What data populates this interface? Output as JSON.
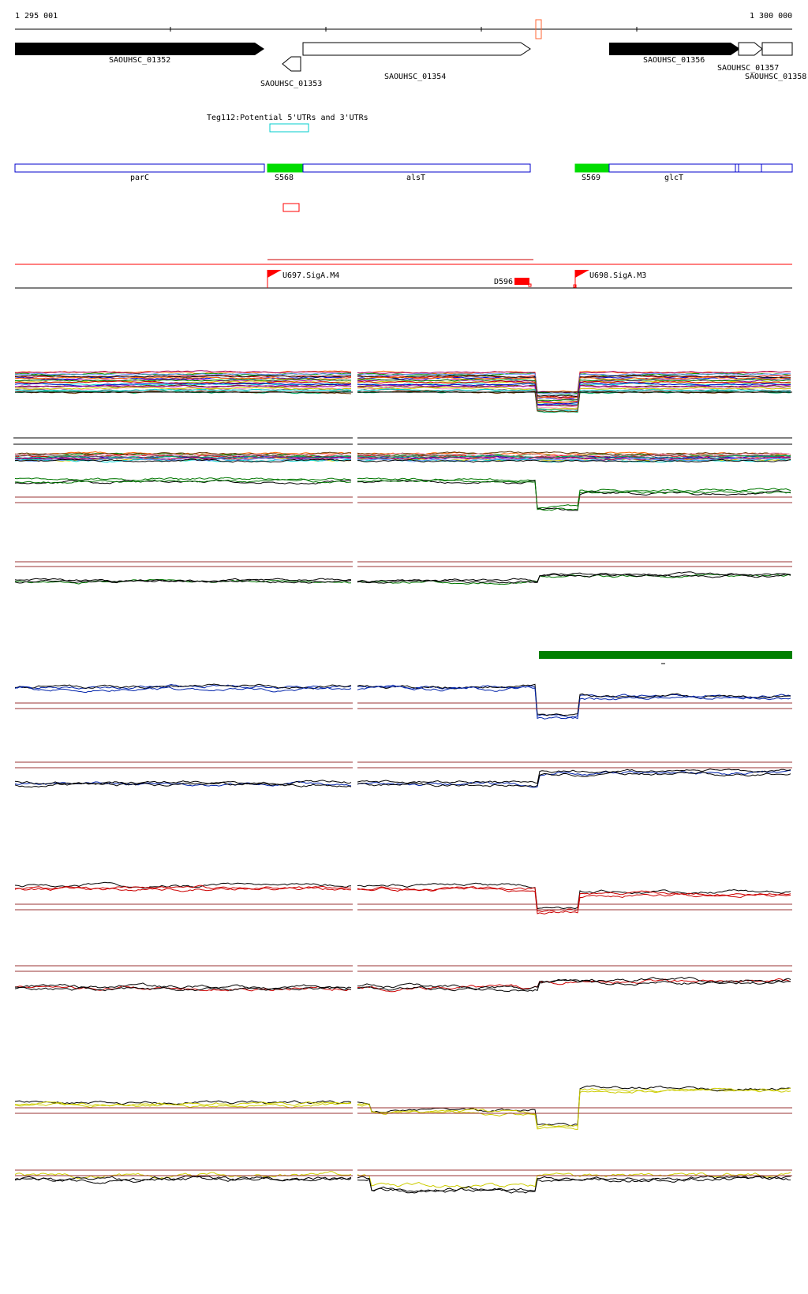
{
  "ruler": {
    "start_label": "1 295 001",
    "end_label": "1 300 000"
  },
  "genes": {
    "g1352": "SAOUHSC_01352",
    "g1353": "SAOUHSC_01353",
    "g1354": "SAOUHSC_01354",
    "g1356": "SAOUHSC_01356",
    "g1357": "SAOUHSC_01357",
    "g1358": "SAOUHSC_01358"
  },
  "utr_annotation": "Teg112:Potential 5'UTRs and 3'UTRs",
  "operons": {
    "parC": "parC",
    "S568": "S568",
    "alsT": "alsT",
    "S569": "S569",
    "glcT": "glcT"
  },
  "promoters": {
    "U697": "U697.SigA.M4",
    "D596": "D596",
    "U698": "U698.SigA.M3"
  },
  "colors": {
    "gene_fill": "#000000",
    "operon_border": "#0000cc",
    "operon_promoter": "#00dd00",
    "utr_box": "#00cccc",
    "marker": "#ff0000",
    "track_black": "#000000",
    "track_green": "#007700",
    "track_blue": "#0022aa",
    "track_red": "#cc0000",
    "track_yellow": "#cccc00",
    "threshold": "#993333",
    "dark_green_bar": "#008000"
  }
}
